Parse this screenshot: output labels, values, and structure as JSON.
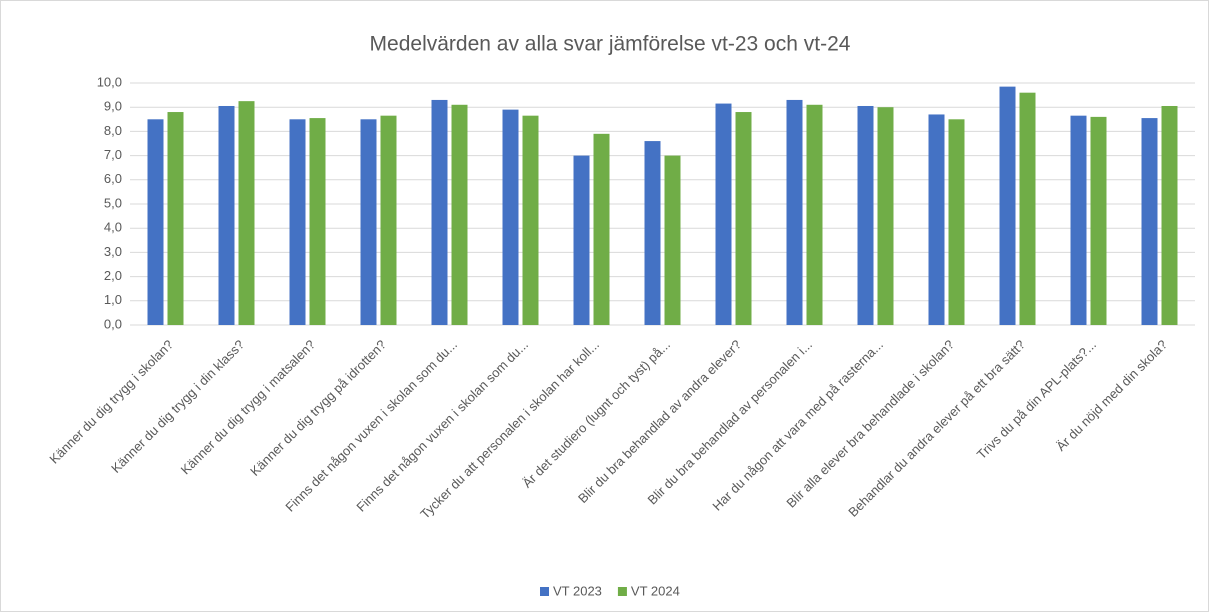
{
  "chart_data": {
    "type": "bar",
    "title": "Medelvärden av alla svar jämförelse vt-23 och vt-24",
    "categories": [
      "Känner du dig trygg i skolan?",
      "Känner du dig trygg i din klass?",
      "Känner du dig trygg i matsalen?",
      "Känner du dig trygg på idrotten?",
      "Finns det någon vuxen i skolan som du...",
      "Finns det någon vuxen i skolan som du...",
      "Tycker du att personalen i skolan har koll...",
      "Är det studiero (lugnt och tyst) på...",
      "Blir du bra behandlad av andra elever?",
      "Blir du bra behandlad av personalen i...",
      "Har du någon att vara med på rasterna...",
      "Blir alla elever bra behandlade i skolan?",
      "Behandlar du andra elever på ett bra sätt?",
      "Trivs du på din APL-plats?...",
      "Är du nöjd med din skola?"
    ],
    "series": [
      {
        "name": "VT 2023",
        "color": "#4472c4",
        "values": [
          8.5,
          9.05,
          8.5,
          8.5,
          9.3,
          8.9,
          7.0,
          7.6,
          9.15,
          9.3,
          9.05,
          8.7,
          9.85,
          8.65,
          8.55
        ]
      },
      {
        "name": "VT 2024",
        "color": "#70ad47",
        "values": [
          8.8,
          9.25,
          8.55,
          8.65,
          9.1,
          8.65,
          7.9,
          7.0,
          8.8,
          9.1,
          9.0,
          8.5,
          9.6,
          8.6,
          9.05
        ]
      }
    ],
    "ylim": [
      0,
      10
    ],
    "yticks": [
      {
        "value": 0,
        "label": "0,0"
      },
      {
        "value": 1,
        "label": "1,0"
      },
      {
        "value": 2,
        "label": "2,0"
      },
      {
        "value": 3,
        "label": "3,0"
      },
      {
        "value": 4,
        "label": "4,0"
      },
      {
        "value": 5,
        "label": "5,0"
      },
      {
        "value": 6,
        "label": "6,0"
      },
      {
        "value": 7,
        "label": "7,0"
      },
      {
        "value": 8,
        "label": "8,0"
      },
      {
        "value": 9,
        "label": "9,0"
      },
      {
        "value": 10,
        "label": "10,0"
      }
    ],
    "grid": true,
    "legend": "bottom"
  }
}
